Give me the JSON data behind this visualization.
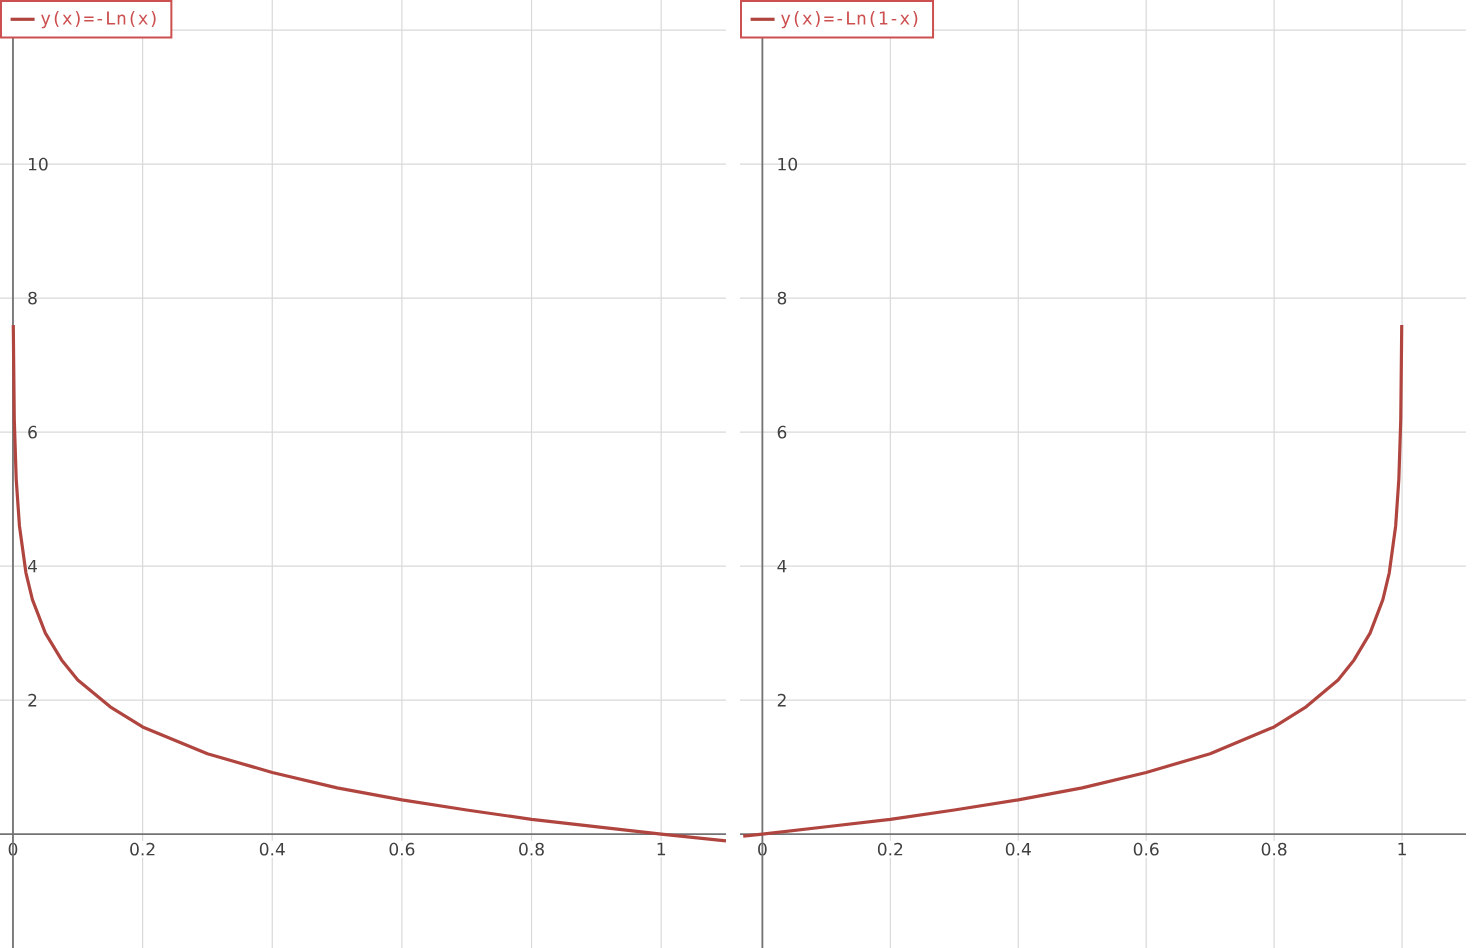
{
  "chart_data": [
    {
      "type": "line",
      "x": [
        0.0005,
        0.002,
        0.005,
        0.01,
        0.02,
        0.03,
        0.05,
        0.075,
        0.1,
        0.15,
        0.2,
        0.3,
        0.4,
        0.5,
        0.6,
        0.7,
        0.8,
        0.9,
        1.0,
        1.1
      ],
      "series": [
        {
          "name": "y(x)=-Ln(x)",
          "color": "#b0453f",
          "values": [
            7.6,
            6.2,
            5.3,
            4.6,
            3.9,
            3.5,
            3.0,
            2.6,
            2.3,
            1.9,
            1.6,
            1.2,
            0.92,
            0.69,
            0.51,
            0.36,
            0.22,
            0.11,
            0.0,
            -0.1
          ]
        }
      ],
      "xlim": [
        -0.02,
        1.1
      ],
      "ylim": [
        -1.7,
        12.45
      ],
      "xticks": [
        0,
        0.2,
        0.4,
        0.6,
        0.8,
        1
      ],
      "yticks": [
        2,
        4,
        6,
        8,
        10,
        {
          "value": 12,
          "label": null
        }
      ],
      "grid": true,
      "legend": "top left"
    },
    {
      "type": "line",
      "x": [
        -0.03,
        0.0,
        0.1,
        0.2,
        0.3,
        0.4,
        0.5,
        0.6,
        0.7,
        0.8,
        0.85,
        0.9,
        0.925,
        0.95,
        0.97,
        0.98,
        0.99,
        0.995,
        0.998,
        0.9995
      ],
      "series": [
        {
          "name": "y(x)=-Ln(1-x)",
          "color": "#b0453f",
          "values": [
            -0.03,
            0.0,
            0.11,
            0.22,
            0.36,
            0.51,
            0.69,
            0.92,
            1.2,
            1.6,
            1.9,
            2.3,
            2.6,
            3.0,
            3.5,
            3.9,
            4.6,
            5.3,
            6.2,
            7.6
          ]
        }
      ],
      "xlim": [
        -0.035,
        1.1
      ],
      "ylim": [
        -1.7,
        12.45
      ],
      "xticks": [
        0,
        0.2,
        0.4,
        0.6,
        0.8,
        1
      ],
      "yticks": [
        2,
        4,
        6,
        8,
        10,
        {
          "value": 12,
          "label": null
        }
      ],
      "grid": true,
      "legend": "top left"
    }
  ]
}
